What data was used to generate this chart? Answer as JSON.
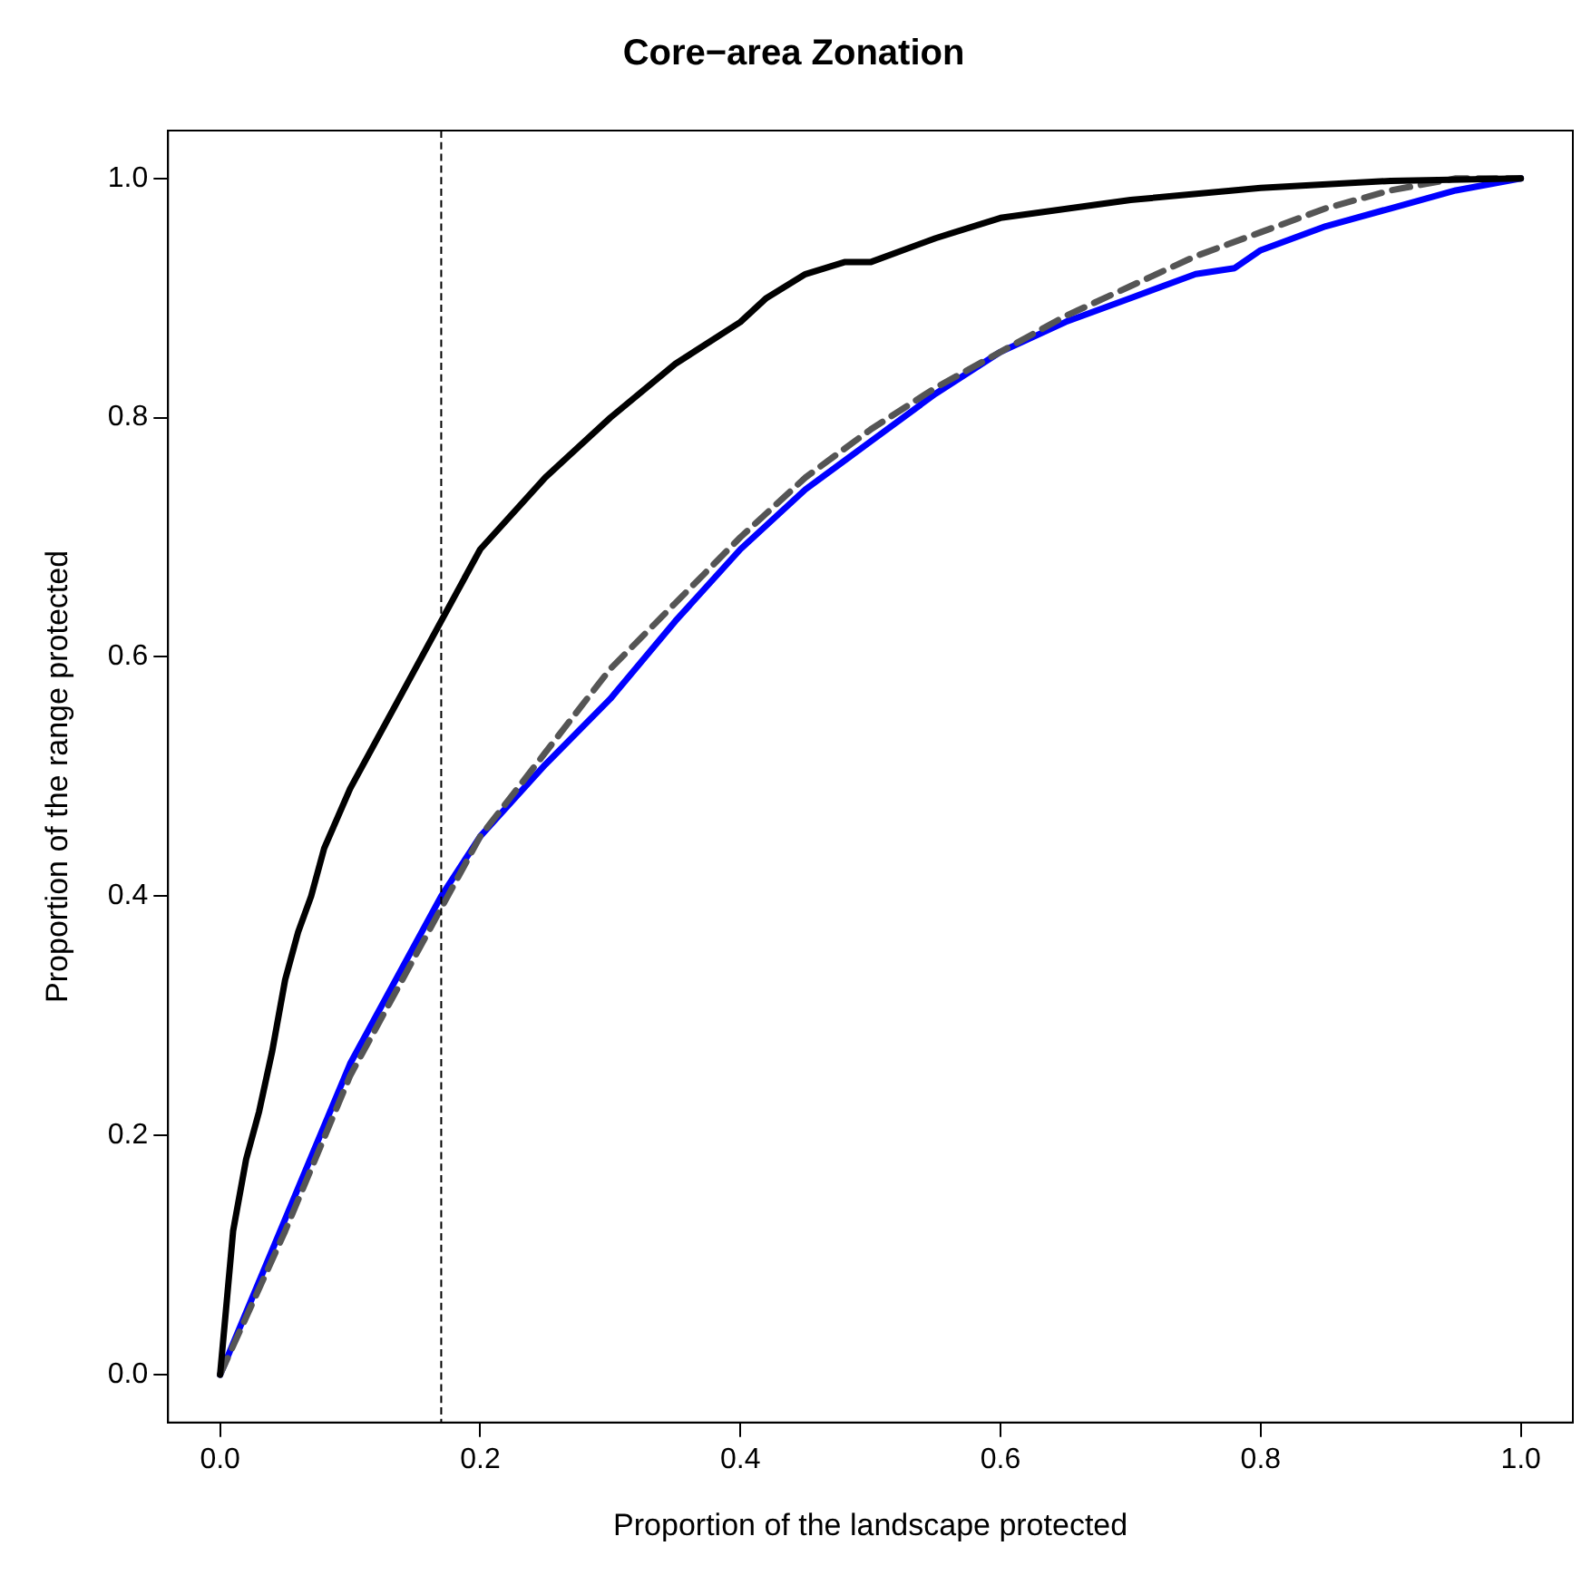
{
  "chart_data": {
    "type": "line",
    "title": "Core−area Zonation",
    "xlabel": "Proportion of the landscape protected",
    "ylabel": "Proportion of the range protected",
    "xlim": [
      -0.04,
      1.04
    ],
    "ylim": [
      -0.04,
      1.04
    ],
    "xticks": [
      {
        "value": 0,
        "label": "0.0"
      },
      {
        "value": 0.2,
        "label": "0.2"
      },
      {
        "value": 0.4,
        "label": "0.4"
      },
      {
        "value": 0.6,
        "label": "0.6"
      },
      {
        "value": 0.8,
        "label": "0.8"
      },
      {
        "value": 1,
        "label": "1.0"
      }
    ],
    "yticks": [
      {
        "value": 0,
        "label": "0.0"
      },
      {
        "value": 0.2,
        "label": "0.2"
      },
      {
        "value": 0.4,
        "label": "0.4"
      },
      {
        "value": 0.6,
        "label": "0.6"
      },
      {
        "value": 0.8,
        "label": "0.8"
      },
      {
        "value": 1,
        "label": "1.0"
      }
    ],
    "marker": "none",
    "series": [
      {
        "color": "#000000",
        "line_style": "solid",
        "x": [
          0,
          0.01,
          0.02,
          0.03,
          0.04,
          0.05,
          0.06,
          0.07,
          0.08,
          0.1,
          0.12,
          0.14,
          0.17,
          0.2,
          0.25,
          0.3,
          0.35,
          0.4,
          0.42,
          0.45,
          0.48,
          0.5,
          0.55,
          0.6,
          0.7,
          0.8,
          0.9,
          1
        ],
        "values": [
          0,
          0.12,
          0.18,
          0.22,
          0.27,
          0.33,
          0.37,
          0.4,
          0.44,
          0.49,
          0.53,
          0.57,
          0.63,
          0.69,
          0.75,
          0.8,
          0.845,
          0.88,
          0.9,
          0.92,
          0.93,
          0.93,
          0.95,
          0.967,
          0.982,
          0.992,
          0.998,
          1
        ]
      },
      {
        "color": "#555555",
        "line_style": "dashed",
        "x": [
          0,
          0.05,
          0.1,
          0.17,
          0.2,
          0.25,
          0.3,
          0.35,
          0.4,
          0.45,
          0.5,
          0.55,
          0.6,
          0.65,
          0.7,
          0.75,
          0.8,
          0.85,
          0.9,
          0.95,
          1
        ],
        "values": [
          0,
          0.12,
          0.25,
          0.39,
          0.45,
          0.52,
          0.59,
          0.645,
          0.7,
          0.75,
          0.79,
          0.825,
          0.855,
          0.885,
          0.91,
          0.935,
          0.955,
          0.975,
          0.99,
          1,
          1
        ]
      },
      {
        "color": "#0000ff",
        "line_style": "solid",
        "x": [
          0,
          0.05,
          0.1,
          0.17,
          0.2,
          0.25,
          0.3,
          0.35,
          0.4,
          0.45,
          0.5,
          0.55,
          0.6,
          0.65,
          0.7,
          0.75,
          0.78,
          0.8,
          0.85,
          0.9,
          0.95,
          1
        ],
        "values": [
          0,
          0.13,
          0.26,
          0.4,
          0.45,
          0.51,
          0.565,
          0.63,
          0.69,
          0.74,
          0.78,
          0.82,
          0.855,
          0.88,
          0.9,
          0.92,
          0.925,
          0.94,
          0.96,
          0.975,
          0.99,
          1
        ]
      }
    ],
    "ref_lines": [
      {
        "axis": "x",
        "value": 0.17,
        "color": "#000000",
        "line_style": "dashed"
      }
    ]
  }
}
